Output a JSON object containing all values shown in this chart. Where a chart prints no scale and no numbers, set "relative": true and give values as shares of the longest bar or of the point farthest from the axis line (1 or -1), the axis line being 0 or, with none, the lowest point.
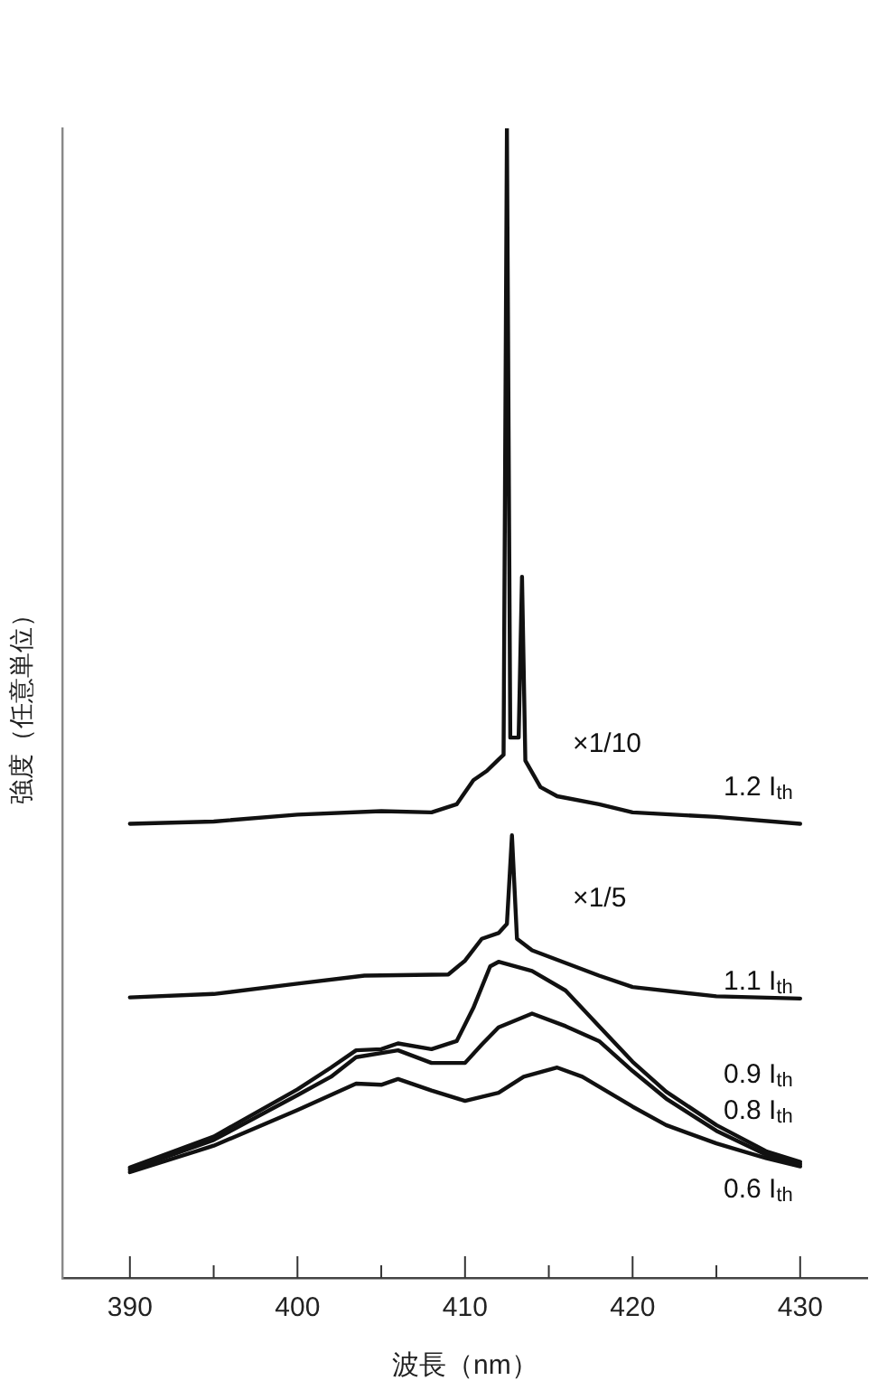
{
  "chart_data": {
    "type": "line",
    "relative": true,
    "xlabel": "波長（nm）",
    "ylabel": "強度（任意単位）",
    "xlim": [
      386,
      434
    ],
    "xticks": [
      390,
      {
        "value": 395,
        "label": null
      },
      400,
      {
        "value": 405,
        "label": null
      },
      410,
      {
        "value": 415,
        "label": null
      },
      420,
      {
        "value": 425,
        "label": null
      },
      430
    ],
    "legend": false,
    "grid": false,
    "marker": "none",
    "line_style": "solid",
    "annotations": [
      "×1/10",
      "×1/5"
    ],
    "series": [
      {
        "name": "1.2 I$_{th}$",
        "color": "#111111",
        "x": [
          390,
          395,
          400,
          405,
          408,
          409.5,
          410.5,
          411.3,
          412,
          412.3,
          412.5,
          412.7,
          413.2,
          413.4,
          413.6,
          414.5,
          415.5,
          418,
          420,
          425,
          430
        ],
        "values": [
          0.395,
          0.397,
          0.403,
          0.406,
          0.405,
          0.412,
          0.433,
          0.441,
          0.451,
          0.455,
          1.0,
          0.47,
          0.47,
          0.61,
          0.45,
          0.427,
          0.419,
          0.412,
          0.405,
          0.401,
          0.395
        ]
      },
      {
        "name": "1.1 I$_{th}$",
        "color": "#111111",
        "x": [
          390,
          395,
          400,
          404,
          409,
          410,
          411,
          412,
          412.5,
          412.8,
          413.1,
          414,
          416,
          418,
          420,
          425,
          430
        ],
        "values": [
          0.244,
          0.247,
          0.256,
          0.263,
          0.264,
          0.276,
          0.295,
          0.3,
          0.308,
          0.385,
          0.295,
          0.285,
          0.274,
          0.263,
          0.253,
          0.245,
          0.243
        ]
      },
      {
        "name": "0.9 I$_{th}$",
        "color": "#111111",
        "x": [
          390,
          395,
          400,
          402,
          403.5,
          405,
          406,
          408,
          409.5,
          410.5,
          411.5,
          412,
          414,
          416,
          418,
          420,
          422,
          425,
          428,
          430
        ],
        "values": [
          0.096,
          0.123,
          0.164,
          0.183,
          0.198,
          0.199,
          0.204,
          0.199,
          0.206,
          0.235,
          0.271,
          0.275,
          0.267,
          0.25,
          0.219,
          0.188,
          0.162,
          0.133,
          0.11,
          0.101
        ]
      },
      {
        "name": "0.8 I$_{th}$",
        "color": "#111111",
        "x": [
          390,
          395,
          400,
          402,
          403.5,
          406,
          408,
          410,
          411,
          412,
          414,
          416,
          418,
          420,
          422,
          425,
          428,
          430
        ],
        "values": [
          0.094,
          0.12,
          0.159,
          0.175,
          0.192,
          0.198,
          0.187,
          0.187,
          0.203,
          0.218,
          0.23,
          0.219,
          0.206,
          0.18,
          0.156,
          0.128,
          0.107,
          0.099
        ]
      },
      {
        "name": "0.6 I$_{th}$",
        "color": "#111111",
        "x": [
          390,
          395,
          400,
          403.5,
          405,
          406,
          408,
          410,
          412,
          413.5,
          415.5,
          417,
          420,
          422,
          425,
          428,
          430
        ],
        "values": [
          0.092,
          0.115,
          0.146,
          0.169,
          0.168,
          0.173,
          0.163,
          0.154,
          0.161,
          0.175,
          0.183,
          0.175,
          0.149,
          0.133,
          0.117,
          0.104,
          0.097
        ]
      }
    ]
  }
}
